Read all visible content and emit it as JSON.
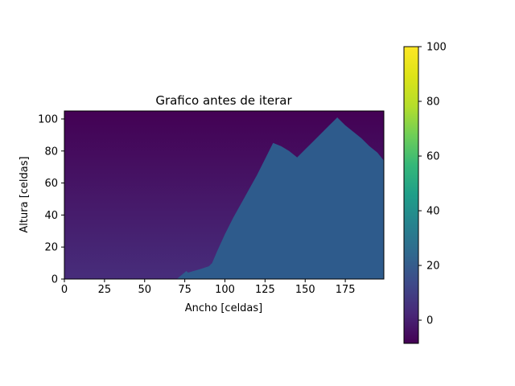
{
  "chart_data": {
    "type": "heatmap",
    "title": "Grafico antes de iterar",
    "xlabel": "Ancho [celdas]",
    "ylabel": "Altura [celdas]",
    "xlim": [
      0,
      199
    ],
    "ylim": [
      0,
      105
    ],
    "x_ticks": [
      "0",
      "25",
      "50",
      "75",
      "100",
      "125",
      "150",
      "175"
    ],
    "y_ticks": [
      "0",
      "20",
      "40",
      "60",
      "80",
      "100"
    ],
    "colorbar": {
      "range": [
        -8.5,
        100
      ],
      "ticks": [
        "0",
        "20",
        "40",
        "60",
        "80",
        "100"
      ],
      "colormap": "viridis"
    },
    "background_gradient": {
      "top_value": -8.5,
      "bottom_value": 5
    },
    "terrain_value": 21,
    "terrain_profile": {
      "x": [
        70,
        76,
        77,
        84,
        90,
        92,
        95,
        100,
        105,
        110,
        115,
        120,
        125,
        130,
        135,
        140,
        145,
        150,
        155,
        160,
        165,
        168,
        170,
        172,
        175,
        180,
        185,
        190,
        195,
        199
      ],
      "height": [
        0,
        5,
        4,
        6,
        8,
        10,
        17,
        28,
        38,
        47,
        56,
        65,
        75,
        85,
        83,
        80,
        76,
        81,
        86,
        91,
        96,
        99,
        101,
        99,
        96,
        92,
        88,
        83,
        79,
        74
      ]
    },
    "plateau": {
      "x_start": 168,
      "x_end": 176,
      "height": 96
    }
  }
}
